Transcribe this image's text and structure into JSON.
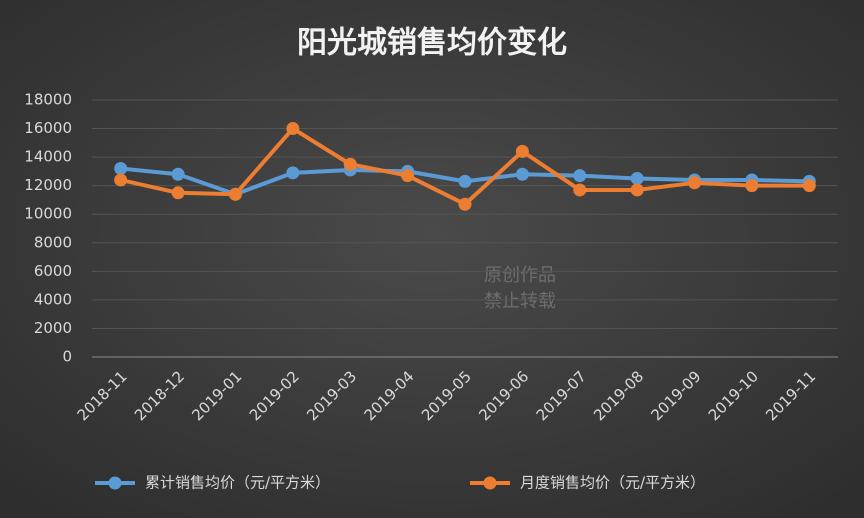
{
  "chart_data": {
    "type": "line",
    "title": "阳光城销售均价变化",
    "categories": [
      "2018-11",
      "2018-12",
      "2019-01",
      "2019-02",
      "2019-03",
      "2019-04",
      "2019-05",
      "2019-06",
      "2019-07",
      "2019-08",
      "2019-09",
      "2019-10",
      "2019-11"
    ],
    "series": [
      {
        "name": "累计销售均价（元/平方米）",
        "color": "#5b9bd5",
        "values": [
          13200,
          12800,
          11400,
          12900,
          13100,
          13000,
          12300,
          12800,
          12700,
          12500,
          12400,
          12400,
          12300
        ]
      },
      {
        "name": "月度销售均价（元/平方米）",
        "color": "#ed7d31",
        "values": [
          12400,
          11500,
          11400,
          16000,
          13500,
          12700,
          10700,
          14400,
          11700,
          11700,
          12200,
          12000,
          12000
        ]
      }
    ],
    "ylim": [
      0,
      18000
    ],
    "yticks": [
      0,
      2000,
      4000,
      6000,
      8000,
      10000,
      12000,
      14000,
      16000,
      18000
    ],
    "grid": true,
    "legend": "bottom",
    "watermark": [
      "原创作品",
      "禁止转载"
    ]
  }
}
